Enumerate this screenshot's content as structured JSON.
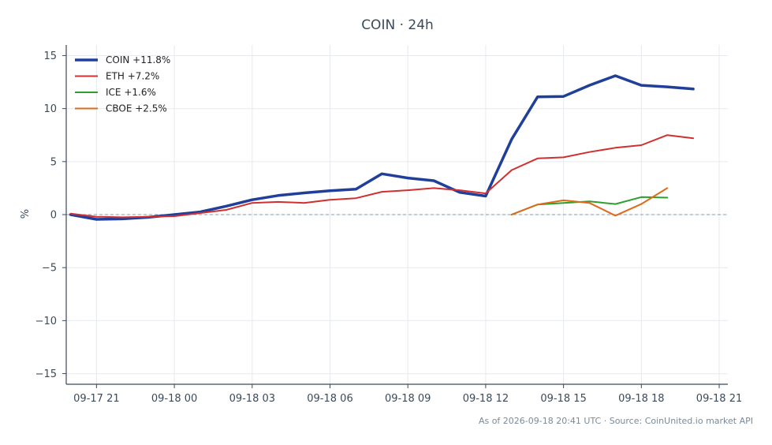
{
  "chart_data": {
    "type": "line",
    "title": "COIN · 24h",
    "ylabel": "%",
    "xlabel": "",
    "ylim": [
      -16,
      16
    ],
    "xlim": [
      "2026-09-17 19:50",
      "2026-09-18 21:20"
    ],
    "grid": true,
    "zero_line": true,
    "legend_position": "top-left",
    "y_ticks": [
      15,
      10,
      5,
      0,
      -5,
      -10,
      -15
    ],
    "y_tick_labels": [
      "15",
      "10",
      "5",
      "0",
      "−5",
      "−10",
      "−15"
    ],
    "x_ticks": [
      "2026-09-17 21:00",
      "2026-09-18 00:00",
      "2026-09-18 03:00",
      "2026-09-18 06:00",
      "2026-09-18 09:00",
      "2026-09-18 12:00",
      "2026-09-18 15:00",
      "2026-09-18 18:00",
      "2026-09-18 21:00"
    ],
    "x_tick_labels": [
      "09-17 21",
      "09-18 00",
      "09-18 03",
      "09-18 06",
      "09-18 09",
      "09-18 12",
      "09-18 15",
      "09-18 18",
      "09-18 21"
    ],
    "series": [
      {
        "name": "COIN +11.8%",
        "color": "#1f3f9a",
        "width": 3.5,
        "x": [
          "2026-09-17 20:00",
          "2026-09-17 21:00",
          "2026-09-17 22:00",
          "2026-09-17 23:00",
          "2026-09-18 00:00",
          "2026-09-18 01:00",
          "2026-09-18 02:00",
          "2026-09-18 03:00",
          "2026-09-18 04:00",
          "2026-09-18 05:00",
          "2026-09-18 06:00",
          "2026-09-18 07:00",
          "2026-09-18 08:00",
          "2026-09-18 09:00",
          "2026-09-18 10:00",
          "2026-09-18 11:00",
          "2026-09-18 12:00",
          "2026-09-18 13:00",
          "2026-09-18 14:00",
          "2026-09-18 15:00",
          "2026-09-18 16:00",
          "2026-09-18 17:00",
          "2026-09-18 18:00",
          "2026-09-18 19:00",
          "2026-09-18 20:00"
        ],
        "values": [
          0.0,
          -0.45,
          -0.4,
          -0.25,
          0.0,
          0.25,
          0.8,
          1.4,
          1.8,
          2.05,
          2.25,
          2.4,
          3.85,
          3.45,
          3.2,
          2.1,
          1.75,
          7.1,
          11.1,
          11.15,
          12.2,
          13.1,
          12.2,
          12.05,
          11.85
        ]
      },
      {
        "name": "ETH +7.2%",
        "color": "#d03030",
        "width": 2,
        "x": [
          "2026-09-17 20:00",
          "2026-09-17 21:00",
          "2026-09-17 22:00",
          "2026-09-17 23:00",
          "2026-09-18 00:00",
          "2026-09-18 01:00",
          "2026-09-18 02:00",
          "2026-09-18 03:00",
          "2026-09-18 04:00",
          "2026-09-18 05:00",
          "2026-09-18 06:00",
          "2026-09-18 07:00",
          "2026-09-18 08:00",
          "2026-09-18 09:00",
          "2026-09-18 10:00",
          "2026-09-18 11:00",
          "2026-09-18 12:00",
          "2026-09-18 13:00",
          "2026-09-18 14:00",
          "2026-09-18 15:00",
          "2026-09-18 16:00",
          "2026-09-18 17:00",
          "2026-09-18 18:00",
          "2026-09-18 19:00",
          "2026-09-18 20:00"
        ],
        "values": [
          0.1,
          -0.2,
          -0.25,
          -0.2,
          -0.15,
          0.15,
          0.45,
          1.1,
          1.2,
          1.1,
          1.4,
          1.55,
          2.15,
          2.3,
          2.5,
          2.3,
          2.0,
          4.2,
          5.3,
          5.4,
          5.9,
          6.3,
          6.55,
          7.5,
          7.2
        ]
      },
      {
        "name": "ICE +1.6%",
        "color": "#2ca02c",
        "width": 2,
        "x": [
          "2026-09-18 13:00",
          "2026-09-18 14:00",
          "2026-09-18 15:00",
          "2026-09-18 16:00",
          "2026-09-18 17:00",
          "2026-09-18 18:00",
          "2026-09-18 19:00"
        ],
        "values": [
          0.0,
          0.95,
          1.1,
          1.25,
          1.0,
          1.65,
          1.6
        ]
      },
      {
        "name": "CBOE +2.5%",
        "color": "#e06a1b",
        "width": 2,
        "x": [
          "2026-09-18 13:00",
          "2026-09-18 14:00",
          "2026-09-18 15:00",
          "2026-09-18 16:00",
          "2026-09-18 17:00",
          "2026-09-18 18:00",
          "2026-09-18 19:00"
        ],
        "values": [
          0.0,
          0.95,
          1.35,
          1.1,
          -0.1,
          1.0,
          2.5
        ]
      }
    ]
  },
  "footer": "As of 2026-09-18 20:41 UTC · Source: CoinUnited.io market API"
}
